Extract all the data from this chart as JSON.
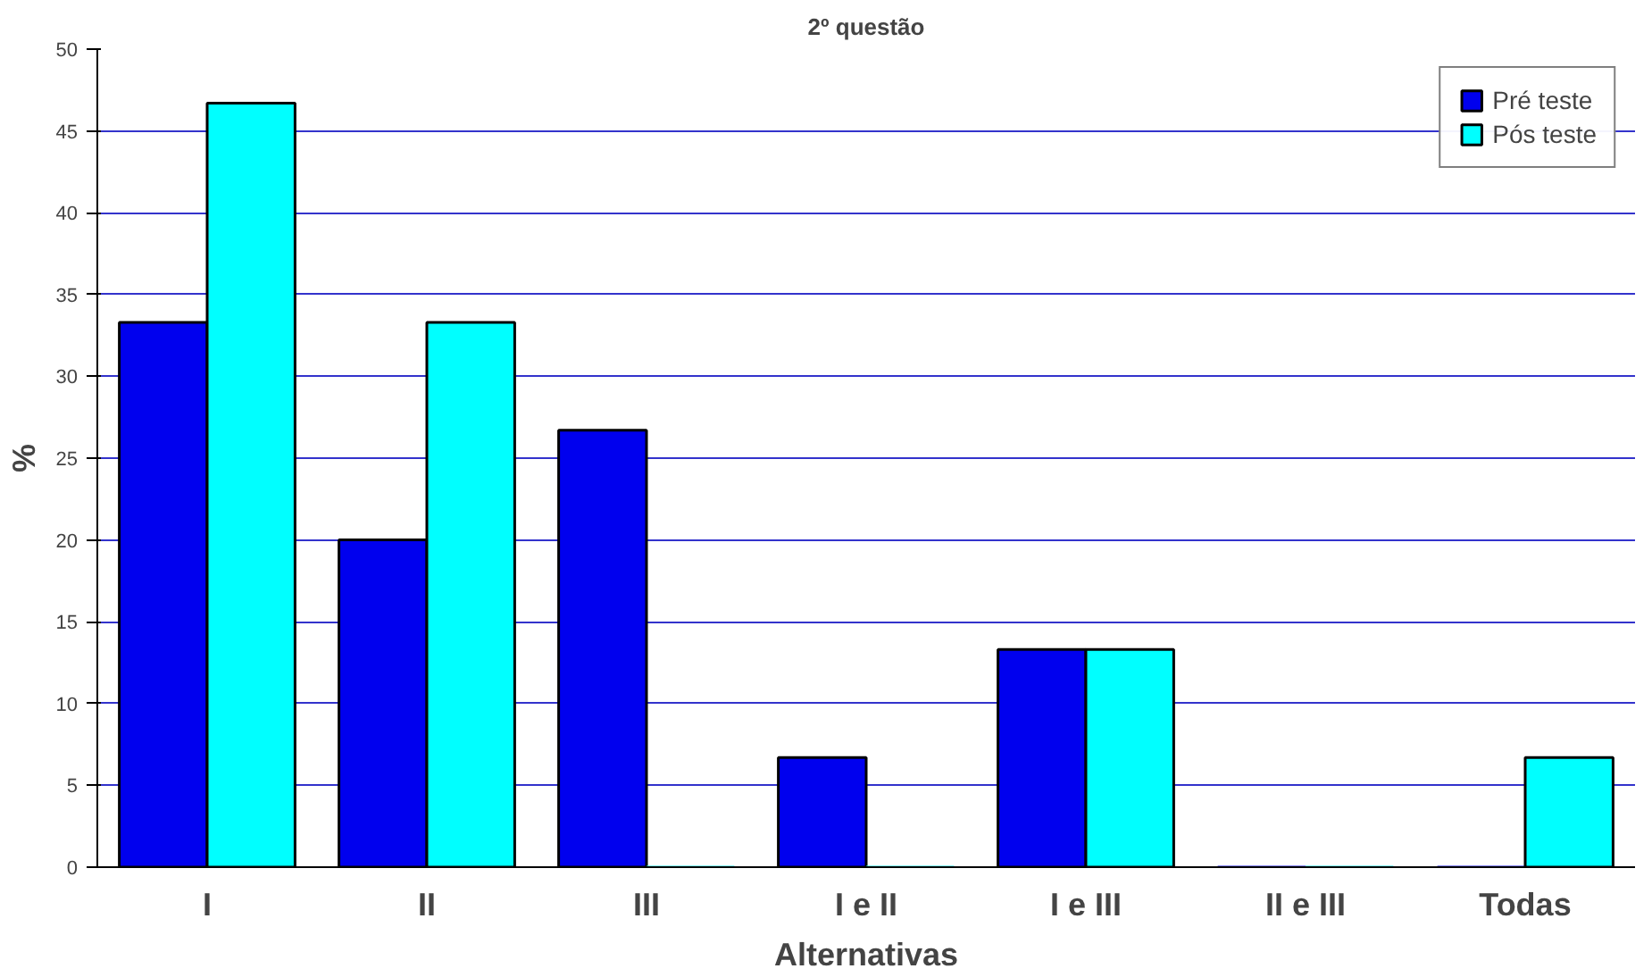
{
  "chart_data": {
    "type": "bar",
    "title": "2º questão",
    "xlabel": "Alternativas",
    "ylabel": "%",
    "categories": [
      "I",
      "II",
      "III",
      "I e II",
      "I e III",
      "II e III",
      "Todas"
    ],
    "series": [
      {
        "name": "Pré teste",
        "color": "#0000ee",
        "values": [
          33.3,
          20,
          26.7,
          6.7,
          13.3,
          0,
          0
        ]
      },
      {
        "name": "Pós teste",
        "color": "#00ffff",
        "values": [
          46.7,
          33.3,
          0,
          0,
          13.3,
          0,
          6.7
        ]
      }
    ],
    "ylim": [
      0,
      50
    ],
    "yticks": [
      0,
      5,
      10,
      15,
      20,
      25,
      30,
      35,
      40,
      45,
      50
    ],
    "grid": "y",
    "legend": "top right"
  }
}
